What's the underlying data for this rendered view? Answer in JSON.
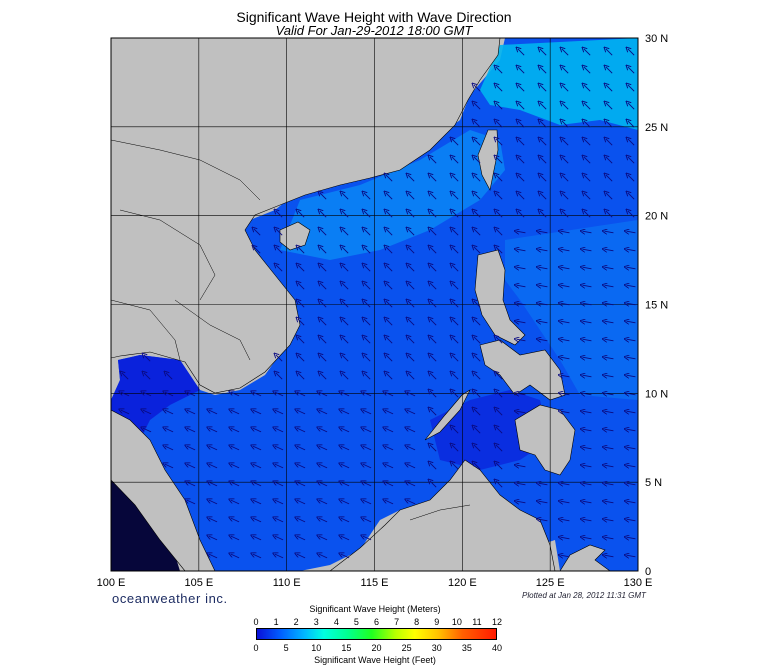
{
  "title": "Significant Wave Height with Wave Direction",
  "subtitle": "Valid For Jan-29-2012 18:00 GMT",
  "x_ticks": [
    "100 E",
    "105 E",
    "110 E",
    "115 E",
    "120 E",
    "125 E",
    "130 E"
  ],
  "y_ticks": [
    "30 N",
    "25 N",
    "20 N",
    "15 N",
    "10 N",
    "5 N",
    "0"
  ],
  "brand": "oceanweather inc.",
  "plotted": "Plotted at Jan 28, 2012 11:31 GMT",
  "colorbar": {
    "meters_title": "Significant Wave Height (Meters)",
    "meters_ticks": [
      "0",
      "1",
      "2",
      "3",
      "4",
      "5",
      "6",
      "7",
      "8",
      "9",
      "10",
      "11",
      "12"
    ],
    "feet_ticks": [
      "0",
      "5",
      "10",
      "15",
      "20",
      "25",
      "30",
      "35",
      "40"
    ],
    "feet_title": "Significant Wave Height (Feet)"
  },
  "colors": {
    "land": "#c0c0c0",
    "sea_low": "#0a10d8",
    "sea_mid": "#0a5cf0",
    "sea_high": "#00c8f0",
    "arrow": "#0a0a80"
  }
}
